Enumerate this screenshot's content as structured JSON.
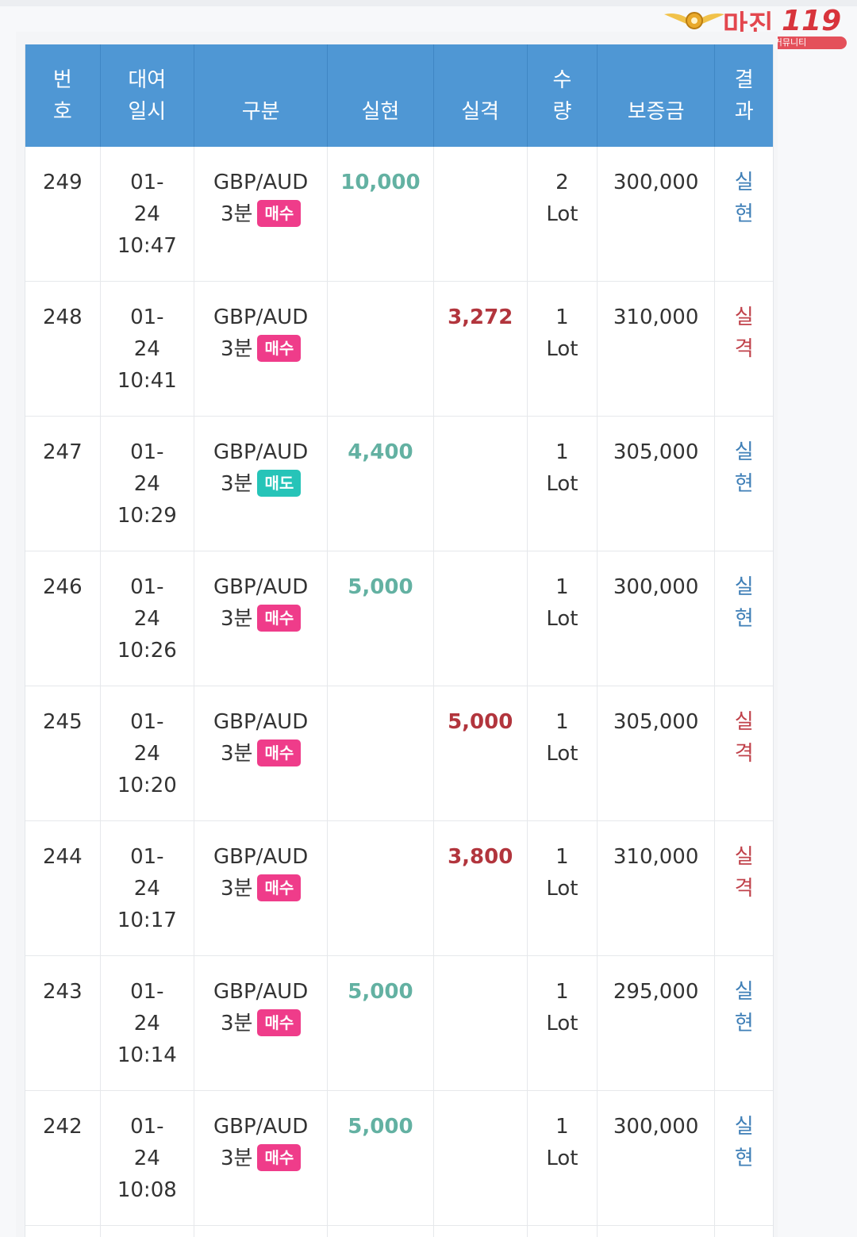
{
  "logo": {
    "title": "마진",
    "number": "119",
    "tagline": "마진거래 검증전문 커뮤니티"
  },
  "colors": {
    "header_bg": "#4f97d4",
    "buy_badge": "#ef3c8a",
    "sell_badge": "#26c4b8",
    "gain_amount": "#63b1a2",
    "loss_amount": "#b2353d",
    "gain_result": "#3f7fb7",
    "loss_result": "#c0414a"
  },
  "table": {
    "headers": [
      {
        "line1": "번",
        "line2": "호"
      },
      {
        "line1": "대여",
        "line2": "일시"
      },
      {
        "line1": "",
        "line2": "구분"
      },
      {
        "line1": "",
        "line2": "실현"
      },
      {
        "line1": "",
        "line2": "실격"
      },
      {
        "line1": "수",
        "line2": "량"
      },
      {
        "line1": "",
        "line2": "보증금"
      },
      {
        "line1": "결",
        "line2": "과"
      }
    ],
    "rows": [
      {
        "no": "249",
        "date1": "01-",
        "date2": "24",
        "time": "10:47",
        "pair": "GBP/AUD",
        "period": "3분",
        "side": "매수",
        "side_type": "buy",
        "gain": "10,000",
        "loss": "",
        "qty": "2",
        "unit": "Lot",
        "deposit": "300,000",
        "res1": "실",
        "res2": "현",
        "result_type": "gain"
      },
      {
        "no": "248",
        "date1": "01-",
        "date2": "24",
        "time": "10:41",
        "pair": "GBP/AUD",
        "period": "3분",
        "side": "매수",
        "side_type": "buy",
        "gain": "",
        "loss": "3,272",
        "qty": "1",
        "unit": "Lot",
        "deposit": "310,000",
        "res1": "실",
        "res2": "격",
        "result_type": "loss"
      },
      {
        "no": "247",
        "date1": "01-",
        "date2": "24",
        "time": "10:29",
        "pair": "GBP/AUD",
        "period": "3분",
        "side": "매도",
        "side_type": "sell",
        "gain": "4,400",
        "loss": "",
        "qty": "1",
        "unit": "Lot",
        "deposit": "305,000",
        "res1": "실",
        "res2": "현",
        "result_type": "gain"
      },
      {
        "no": "246",
        "date1": "01-",
        "date2": "24",
        "time": "10:26",
        "pair": "GBP/AUD",
        "period": "3분",
        "side": "매수",
        "side_type": "buy",
        "gain": "5,000",
        "loss": "",
        "qty": "1",
        "unit": "Lot",
        "deposit": "300,000",
        "res1": "실",
        "res2": "현",
        "result_type": "gain"
      },
      {
        "no": "245",
        "date1": "01-",
        "date2": "24",
        "time": "10:20",
        "pair": "GBP/AUD",
        "period": "3분",
        "side": "매수",
        "side_type": "buy",
        "gain": "",
        "loss": "5,000",
        "qty": "1",
        "unit": "Lot",
        "deposit": "305,000",
        "res1": "실",
        "res2": "격",
        "result_type": "loss"
      },
      {
        "no": "244",
        "date1": "01-",
        "date2": "24",
        "time": "10:17",
        "pair": "GBP/AUD",
        "period": "3분",
        "side": "매수",
        "side_type": "buy",
        "gain": "",
        "loss": "3,800",
        "qty": "1",
        "unit": "Lot",
        "deposit": "310,000",
        "res1": "실",
        "res2": "격",
        "result_type": "loss"
      },
      {
        "no": "243",
        "date1": "01-",
        "date2": "24",
        "time": "10:14",
        "pair": "GBP/AUD",
        "period": "3분",
        "side": "매수",
        "side_type": "buy",
        "gain": "5,000",
        "loss": "",
        "qty": "1",
        "unit": "Lot",
        "deposit": "295,000",
        "res1": "실",
        "res2": "현",
        "result_type": "gain"
      },
      {
        "no": "242",
        "date1": "01-",
        "date2": "24",
        "time": "10:08",
        "pair": "GBP/AUD",
        "period": "3분",
        "side": "매수",
        "side_type": "buy",
        "gain": "5,000",
        "loss": "",
        "qty": "1",
        "unit": "Lot",
        "deposit": "300,000",
        "res1": "실",
        "res2": "현",
        "result_type": "gain"
      }
    ]
  }
}
